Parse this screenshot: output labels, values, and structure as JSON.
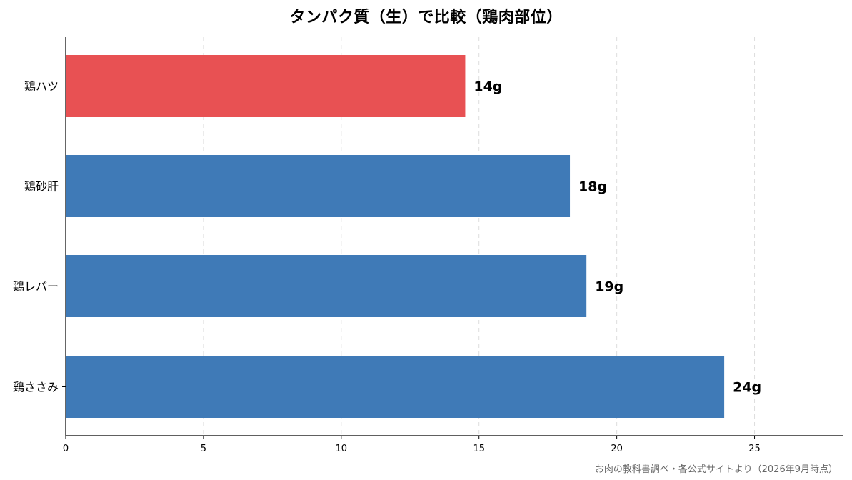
{
  "chart_data": {
    "type": "bar",
    "orientation": "horizontal",
    "title": "タンパク質（生）で比較（鶏肉部位）",
    "categories": [
      "鶏ハツ",
      "鶏砂肝",
      "鶏レバー",
      "鶏ささみ"
    ],
    "values": [
      14.5,
      18.3,
      18.9,
      23.9
    ],
    "value_labels": [
      "14g",
      "18g",
      "19g",
      "24g"
    ],
    "bar_colors": [
      "#e85153",
      "#3f7ab7",
      "#3f7ab7",
      "#3f7ab7"
    ],
    "xlim": [
      0,
      28.2
    ],
    "xticks": [
      0,
      5,
      10,
      15,
      20,
      25
    ],
    "xlabel": "",
    "ylabel": "",
    "grid": "x-dashed",
    "legend": "none"
  },
  "source_note": "お肉の教科書調べ・各公式サイトより（2026年9月時点）"
}
